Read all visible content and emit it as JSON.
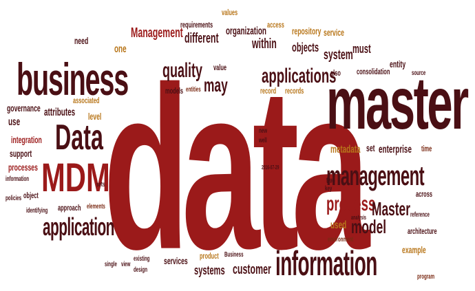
{
  "cloud": {
    "data": "data",
    "master": "master",
    "business": "business",
    "information": "information",
    "management": "management",
    "mdm": "MDM",
    "data_small": "Data",
    "application": "application",
    "applications": "applications",
    "process": "process",
    "master_small": "Master",
    "quality": "quality",
    "model": "model",
    "may": "may",
    "management_top": "Management",
    "different": "different",
    "within": "within",
    "organization": "organization",
    "objects": "objects",
    "system": "system",
    "must": "must",
    "entity": "entity",
    "consolidation": "consolidation",
    "repository": "repository",
    "service": "service",
    "access": "access",
    "requirements": "requirements",
    "values": "values",
    "need": "need",
    "one": "one",
    "value": "value",
    "models": "models",
    "entities": "entities",
    "record": "record",
    "records": "records",
    "governance": "governance",
    "attributes": "attributes",
    "associated": "associated",
    "level": "level",
    "use": "use",
    "integration": "integration",
    "support": "support",
    "processes": "processes",
    "information_small": "information",
    "object": "object",
    "policies": "policies",
    "identifying": "identifying",
    "approach": "approach",
    "elements": "elements",
    "sets": "sets",
    "metadata": "metadata",
    "set": "set",
    "enterprise": "enterprise",
    "time": "time",
    "two": "two",
    "key": "key",
    "across": "across",
    "used": "used",
    "reference": "reference",
    "architecture": "architecture",
    "example": "example",
    "services": "services",
    "systems": "systems",
    "customer": "customer",
    "product": "product",
    "business_small": "Business",
    "single": "single",
    "view": "view",
    "existing": "existing",
    "design": "design",
    "program": "program",
    "also": "also",
    "source": "source",
    "new": "new",
    "well": "well",
    "date": "2016-07-29",
    "analysis": "analysis",
    "environment": "environment"
  }
}
